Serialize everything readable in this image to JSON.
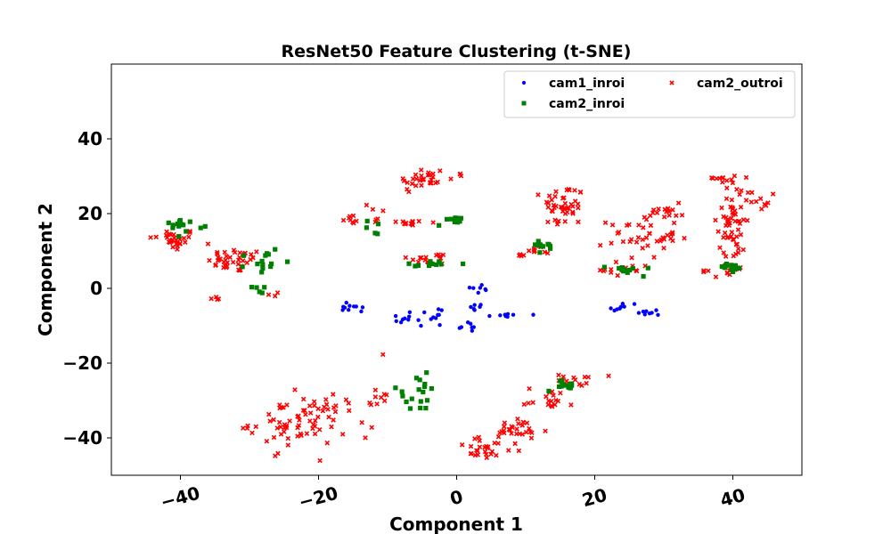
{
  "chart_data": {
    "type": "scatter",
    "title": "ResNet50 Feature Clustering (t-SNE)",
    "xlabel": "Component 1",
    "ylabel": "Component 2",
    "xlim": [
      -50,
      50
    ],
    "ylim": [
      -50,
      60
    ],
    "xticks": [
      -40,
      -20,
      0,
      20,
      40
    ],
    "yticks": [
      -40,
      -20,
      0,
      20,
      40
    ],
    "xtick_rotation_deg": -15,
    "grid": false,
    "legend": {
      "position": "top-right",
      "columns": 2
    },
    "series": [
      {
        "name": "cam1_inroi",
        "color": "#0000ff",
        "marker": "circle",
        "clusters": [
          {
            "cx": -15.5,
            "cy": -5.5,
            "sx": 0.9,
            "sy": 0.8,
            "n": 10
          },
          {
            "cx": -7.5,
            "cy": -8.0,
            "sx": 1.0,
            "sy": 0.8,
            "n": 9
          },
          {
            "cx": -3.5,
            "cy": -7.0,
            "sx": 0.8,
            "sy": 1.6,
            "n": 10
          },
          {
            "cx": 1.5,
            "cy": -10.5,
            "sx": 0.7,
            "sy": 0.7,
            "n": 7
          },
          {
            "cx": 3.0,
            "cy": -5.0,
            "sx": 0.6,
            "sy": 0.5,
            "n": 6
          },
          {
            "cx": 3.0,
            "cy": 0.0,
            "sx": 0.8,
            "sy": 0.6,
            "n": 7
          },
          {
            "cx": 7.5,
            "cy": -7.0,
            "sx": 1.2,
            "sy": 0.4,
            "n": 8
          },
          {
            "cx": 24.0,
            "cy": -5.0,
            "sx": 1.2,
            "sy": 0.6,
            "n": 8
          },
          {
            "cx": 28.0,
            "cy": -6.5,
            "sx": 0.8,
            "sy": 0.6,
            "n": 8
          }
        ]
      },
      {
        "name": "cam2_inroi",
        "color": "#008000",
        "marker": "square",
        "clusters": [
          {
            "cx": -39.5,
            "cy": 17.0,
            "sx": 1.4,
            "sy": 0.8,
            "n": 14
          },
          {
            "cx": -28.0,
            "cy": 7.5,
            "sx": 1.2,
            "sy": 2.0,
            "n": 14
          },
          {
            "cx": -28.0,
            "cy": -0.5,
            "sx": 0.8,
            "sy": 0.5,
            "n": 5
          },
          {
            "cx": -12.0,
            "cy": 16.5,
            "sx": 0.5,
            "sy": 1.0,
            "n": 5
          },
          {
            "cx": -3.5,
            "cy": 6.5,
            "sx": 1.8,
            "sy": 0.6,
            "n": 12
          },
          {
            "cx": -1.0,
            "cy": 17.5,
            "sx": 0.8,
            "sy": 0.8,
            "n": 9
          },
          {
            "cx": 12.0,
            "cy": 11.0,
            "sx": 1.2,
            "sy": 1.2,
            "n": 12
          },
          {
            "cx": 25.0,
            "cy": 5.0,
            "sx": 1.5,
            "sy": 0.6,
            "n": 12
          },
          {
            "cx": 39.5,
            "cy": 5.5,
            "sx": 1.0,
            "sy": 0.7,
            "n": 12
          },
          {
            "cx": -6.0,
            "cy": -28.0,
            "sx": 2.2,
            "sy": 2.5,
            "n": 18
          },
          {
            "cx": 16.0,
            "cy": -26.0,
            "sx": 1.5,
            "sy": 0.7,
            "n": 14
          }
        ]
      },
      {
        "name": "cam2_outroi",
        "color": "#ff0000",
        "marker": "x",
        "clusters": [
          {
            "cx": -41.0,
            "cy": 13.0,
            "sx": 1.8,
            "sy": 1.5,
            "n": 30
          },
          {
            "cx": -32.0,
            "cy": 7.5,
            "sx": 2.0,
            "sy": 1.6,
            "n": 40
          },
          {
            "cx": -35.0,
            "cy": -2.5,
            "sx": 0.4,
            "sy": 0.4,
            "n": 4
          },
          {
            "cx": -26.5,
            "cy": -1.5,
            "sx": 0.4,
            "sy": 0.5,
            "n": 3
          },
          {
            "cx": -15.5,
            "cy": 18.5,
            "sx": 0.8,
            "sy": 0.6,
            "n": 7
          },
          {
            "cx": -11.5,
            "cy": 20.0,
            "sx": 0.6,
            "sy": 2.0,
            "n": 6
          },
          {
            "cx": -7.0,
            "cy": 17.5,
            "sx": 2.0,
            "sy": 0.5,
            "n": 14
          },
          {
            "cx": -5.0,
            "cy": 29.0,
            "sx": 1.8,
            "sy": 1.8,
            "n": 30
          },
          {
            "cx": 0.5,
            "cy": 30.5,
            "sx": 0.3,
            "sy": 0.3,
            "n": 3
          },
          {
            "cx": -3.5,
            "cy": 8.0,
            "sx": 1.8,
            "sy": 0.8,
            "n": 16
          },
          {
            "cx": 15.5,
            "cy": 22.0,
            "sx": 1.5,
            "sy": 3.0,
            "n": 45
          },
          {
            "cx": 12.0,
            "cy": 10.5,
            "sx": 1.0,
            "sy": 1.0,
            "n": 8
          },
          {
            "cx": 9.0,
            "cy": 8.5,
            "sx": 0.5,
            "sy": 0.4,
            "n": 4
          },
          {
            "cx": 27.0,
            "cy": 14.0,
            "sx": 2.5,
            "sy": 3.0,
            "n": 45
          },
          {
            "cx": 30.5,
            "cy": 20.5,
            "sx": 1.2,
            "sy": 1.0,
            "n": 12
          },
          {
            "cx": 24.5,
            "cy": 5.0,
            "sx": 1.8,
            "sy": 1.0,
            "n": 15
          },
          {
            "cx": 38.0,
            "cy": 29.5,
            "sx": 0.5,
            "sy": 0.2,
            "n": 6
          },
          {
            "cx": 40.0,
            "cy": 18.0,
            "sx": 1.0,
            "sy": 6.0,
            "n": 60
          },
          {
            "cx": 43.0,
            "cy": 24.0,
            "sx": 1.2,
            "sy": 1.5,
            "n": 12
          },
          {
            "cx": 36.0,
            "cy": 4.5,
            "sx": 0.5,
            "sy": 0.3,
            "n": 3
          },
          {
            "cx": 39.5,
            "cy": 4.5,
            "sx": 1.2,
            "sy": 0.8,
            "n": 8
          },
          {
            "cx": -23.0,
            "cy": -36.0,
            "sx": 3.5,
            "sy": 3.5,
            "n": 70
          },
          {
            "cx": -15.0,
            "cy": -33.0,
            "sx": 1.5,
            "sy": 2.0,
            "n": 10
          },
          {
            "cx": -10.5,
            "cy": -29.0,
            "sx": 1.0,
            "sy": 1.2,
            "n": 6
          },
          {
            "cx": -10.5,
            "cy": -17.5,
            "sx": 0.2,
            "sy": 0.2,
            "n": 1
          },
          {
            "cx": 4.0,
            "cy": -43.0,
            "sx": 2.0,
            "sy": 1.5,
            "n": 25
          },
          {
            "cx": 9.0,
            "cy": -38.5,
            "sx": 2.0,
            "sy": 1.8,
            "n": 30
          },
          {
            "cx": 13.5,
            "cy": -29.5,
            "sx": 1.8,
            "sy": 1.5,
            "n": 18
          },
          {
            "cx": 17.5,
            "cy": -24.5,
            "sx": 1.5,
            "sy": 0.8,
            "n": 14
          }
        ]
      }
    ]
  }
}
